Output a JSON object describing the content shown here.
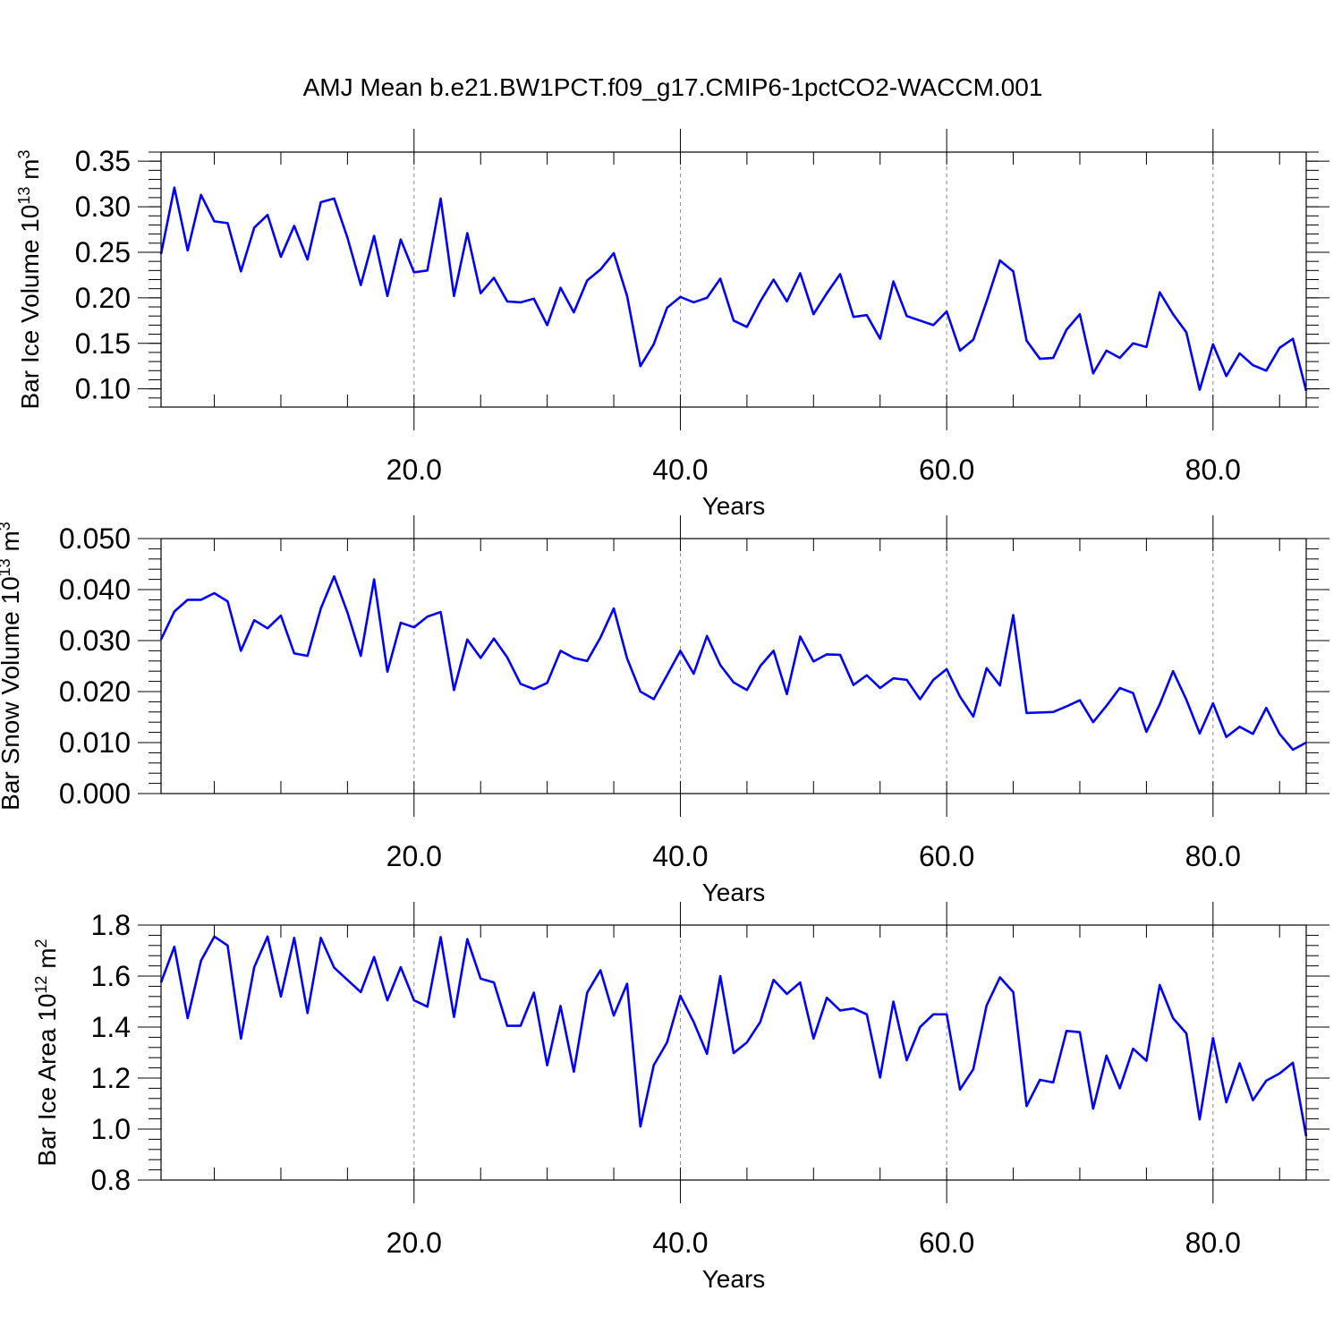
{
  "figure_title": "AMJ Mean b.e21.BW1PCT.f09_g17.CMIP6-1pctCO2-WACCM.001",
  "chart_data": [
    {
      "type": "line",
      "title": "AMJ Mean b.e21.BW1PCT.f09_g17.CMIP6-1pctCO2-WACCM.001",
      "ylabel": "Bar Ice Volume",
      "yunit": {
        "base": "10",
        "exp": "13",
        "unit": "m",
        "unit_exp": "3"
      },
      "xlabel": "Years",
      "xlim": [
        1,
        87
      ],
      "ylim": [
        0.08,
        0.36
      ],
      "yticks": [
        0.1,
        0.15,
        0.2,
        0.25,
        0.3,
        0.35
      ],
      "ytick_labels": [
        "0.10",
        "0.15",
        "0.20",
        "0.25",
        "0.30",
        "0.35"
      ],
      "xticks": [
        20,
        40,
        60,
        80
      ],
      "xtick_labels": [
        "20.0",
        "40.0",
        "60.0",
        "80.0"
      ],
      "grid": "vertical dashed at major x ticks",
      "color": "#0000ff",
      "x": [
        1,
        2,
        3,
        4,
        5,
        6,
        7,
        8,
        9,
        10,
        11,
        12,
        13,
        14,
        15,
        16,
        17,
        18,
        19,
        20,
        21,
        22,
        23,
        24,
        25,
        26,
        27,
        28,
        29,
        30,
        31,
        32,
        33,
        34,
        35,
        36,
        37,
        38,
        39,
        40,
        41,
        42,
        43,
        44,
        45,
        46,
        47,
        48,
        49,
        50,
        51,
        52,
        53,
        54,
        55,
        56,
        57,
        58,
        59,
        60,
        61,
        62,
        63,
        64,
        65,
        66,
        67,
        68,
        69,
        70,
        71,
        72,
        73,
        74,
        75,
        76,
        77,
        78,
        79,
        80,
        81,
        82,
        83,
        84,
        85,
        86,
        87
      ],
      "values": [
        0.248,
        0.321,
        0.252,
        0.313,
        0.284,
        0.282,
        0.229,
        0.277,
        0.291,
        0.245,
        0.279,
        0.242,
        0.305,
        0.309,
        0.266,
        0.214,
        0.268,
        0.202,
        0.264,
        0.228,
        0.23,
        0.309,
        0.202,
        0.271,
        0.205,
        0.222,
        0.196,
        0.195,
        0.199,
        0.17,
        0.211,
        0.184,
        0.219,
        0.231,
        0.249,
        0.202,
        0.125,
        0.149,
        0.189,
        0.201,
        0.195,
        0.2,
        0.221,
        0.175,
        0.168,
        0.196,
        0.22,
        0.196,
        0.227,
        0.182,
        0.205,
        0.226,
        0.179,
        0.181,
        0.155,
        0.218,
        0.18,
        0.175,
        0.17,
        0.185,
        0.142,
        0.154,
        0.196,
        0.241,
        0.229,
        0.153,
        0.133,
        0.134,
        0.165,
        0.182,
        0.117,
        0.142,
        0.134,
        0.15,
        0.146,
        0.206,
        0.182,
        0.162,
        0.099,
        0.149,
        0.114,
        0.139,
        0.126,
        0.12,
        0.145,
        0.155,
        0.098
      ]
    },
    {
      "type": "line",
      "ylabel": "Bar Snow Volume",
      "yunit": {
        "base": "10",
        "exp": "13",
        "unit": "m",
        "unit_exp": "3"
      },
      "xlabel": "Years",
      "xlim": [
        1,
        87
      ],
      "ylim": [
        0.0,
        0.05
      ],
      "yticks": [
        0.0,
        0.01,
        0.02,
        0.03,
        0.04,
        0.05
      ],
      "ytick_labels": [
        "0.000",
        "0.010",
        "0.020",
        "0.030",
        "0.040",
        "0.050"
      ],
      "xticks": [
        20,
        40,
        60,
        80
      ],
      "xtick_labels": [
        "20.0",
        "40.0",
        "60.0",
        "80.0"
      ],
      "grid": "vertical dashed at major x ticks",
      "color": "#0000ff",
      "x": [
        1,
        2,
        3,
        4,
        5,
        6,
        7,
        8,
        9,
        10,
        11,
        12,
        13,
        14,
        15,
        16,
        17,
        18,
        19,
        20,
        21,
        22,
        23,
        24,
        25,
        26,
        27,
        28,
        29,
        30,
        31,
        32,
        33,
        34,
        35,
        36,
        37,
        38,
        39,
        40,
        41,
        42,
        43,
        44,
        45,
        46,
        47,
        48,
        49,
        50,
        51,
        52,
        53,
        54,
        55,
        56,
        57,
        58,
        59,
        60,
        61,
        62,
        63,
        64,
        65,
        66,
        67,
        68,
        69,
        70,
        71,
        72,
        73,
        74,
        75,
        76,
        77,
        78,
        79,
        80,
        81,
        82,
        83,
        84,
        85,
        86,
        87
      ],
      "values": [
        0.0302,
        0.0357,
        0.038,
        0.038,
        0.0393,
        0.0377,
        0.028,
        0.034,
        0.0324,
        0.0349,
        0.0275,
        0.027,
        0.0363,
        0.0426,
        0.0355,
        0.027,
        0.042,
        0.0239,
        0.0335,
        0.0326,
        0.0347,
        0.0356,
        0.0203,
        0.0302,
        0.0266,
        0.0304,
        0.0267,
        0.0215,
        0.0205,
        0.0217,
        0.028,
        0.0266,
        0.026,
        0.0306,
        0.0363,
        0.0265,
        0.02,
        0.0185,
        0.0232,
        0.028,
        0.0235,
        0.0309,
        0.0252,
        0.0218,
        0.0203,
        0.025,
        0.028,
        0.0195,
        0.0308,
        0.0259,
        0.0273,
        0.0272,
        0.0213,
        0.0232,
        0.0207,
        0.0226,
        0.0223,
        0.0185,
        0.0223,
        0.0244,
        0.019,
        0.0151,
        0.0246,
        0.0212,
        0.035,
        0.0158,
        0.0159,
        0.016,
        0.0171,
        0.0183,
        0.014,
        0.0172,
        0.0207,
        0.0197,
        0.0121,
        0.0175,
        0.024,
        0.0184,
        0.0118,
        0.0177,
        0.0111,
        0.0131,
        0.0117,
        0.0168,
        0.0117,
        0.0086,
        0.01
      ]
    },
    {
      "type": "line",
      "ylabel": "Bar Ice Area",
      "yunit": {
        "base": "10",
        "exp": "12",
        "unit": "m",
        "unit_exp": "2"
      },
      "xlabel": "Years",
      "xlim": [
        1,
        87
      ],
      "ylim": [
        0.8,
        1.8
      ],
      "yticks": [
        0.8,
        1.0,
        1.2,
        1.4,
        1.6,
        1.8
      ],
      "ytick_labels": [
        "0.8",
        "1.0",
        "1.2",
        "1.4",
        "1.6",
        "1.8"
      ],
      "xticks": [
        20,
        40,
        60,
        80
      ],
      "xtick_labels": [
        "20.0",
        "40.0",
        "60.0",
        "80.0"
      ],
      "grid": "vertical dashed at major x ticks",
      "color": "#0000ff",
      "x": [
        1,
        2,
        3,
        4,
        5,
        6,
        7,
        8,
        9,
        10,
        11,
        12,
        13,
        14,
        15,
        16,
        17,
        18,
        19,
        20,
        21,
        22,
        23,
        24,
        25,
        26,
        27,
        28,
        29,
        30,
        31,
        32,
        33,
        34,
        35,
        36,
        37,
        38,
        39,
        40,
        41,
        42,
        43,
        44,
        45,
        46,
        47,
        48,
        49,
        50,
        51,
        52,
        53,
        54,
        55,
        56,
        57,
        58,
        59,
        60,
        61,
        62,
        63,
        64,
        65,
        66,
        67,
        68,
        69,
        70,
        71,
        72,
        73,
        74,
        75,
        76,
        77,
        78,
        79,
        80,
        81,
        82,
        83,
        84,
        85,
        86,
        87
      ],
      "values": [
        1.575,
        1.715,
        1.435,
        1.66,
        1.755,
        1.72,
        1.355,
        1.635,
        1.755,
        1.52,
        1.75,
        1.455,
        1.75,
        1.633,
        1.585,
        1.537,
        1.675,
        1.505,
        1.635,
        1.505,
        1.48,
        1.753,
        1.44,
        1.745,
        1.59,
        1.575,
        1.405,
        1.405,
        1.535,
        1.25,
        1.483,
        1.225,
        1.535,
        1.623,
        1.445,
        1.57,
        1.01,
        1.25,
        1.34,
        1.523,
        1.42,
        1.295,
        1.6,
        1.298,
        1.34,
        1.42,
        1.585,
        1.53,
        1.575,
        1.355,
        1.515,
        1.465,
        1.473,
        1.45,
        1.202,
        1.5,
        1.27,
        1.4,
        1.45,
        1.45,
        1.155,
        1.235,
        1.485,
        1.595,
        1.537,
        1.09,
        1.193,
        1.183,
        1.385,
        1.38,
        1.08,
        1.288,
        1.16,
        1.315,
        1.268,
        1.565,
        1.435,
        1.375,
        1.038,
        1.357,
        1.105,
        1.258,
        1.113,
        1.19,
        1.218,
        1.26,
        0.972
      ]
    }
  ]
}
